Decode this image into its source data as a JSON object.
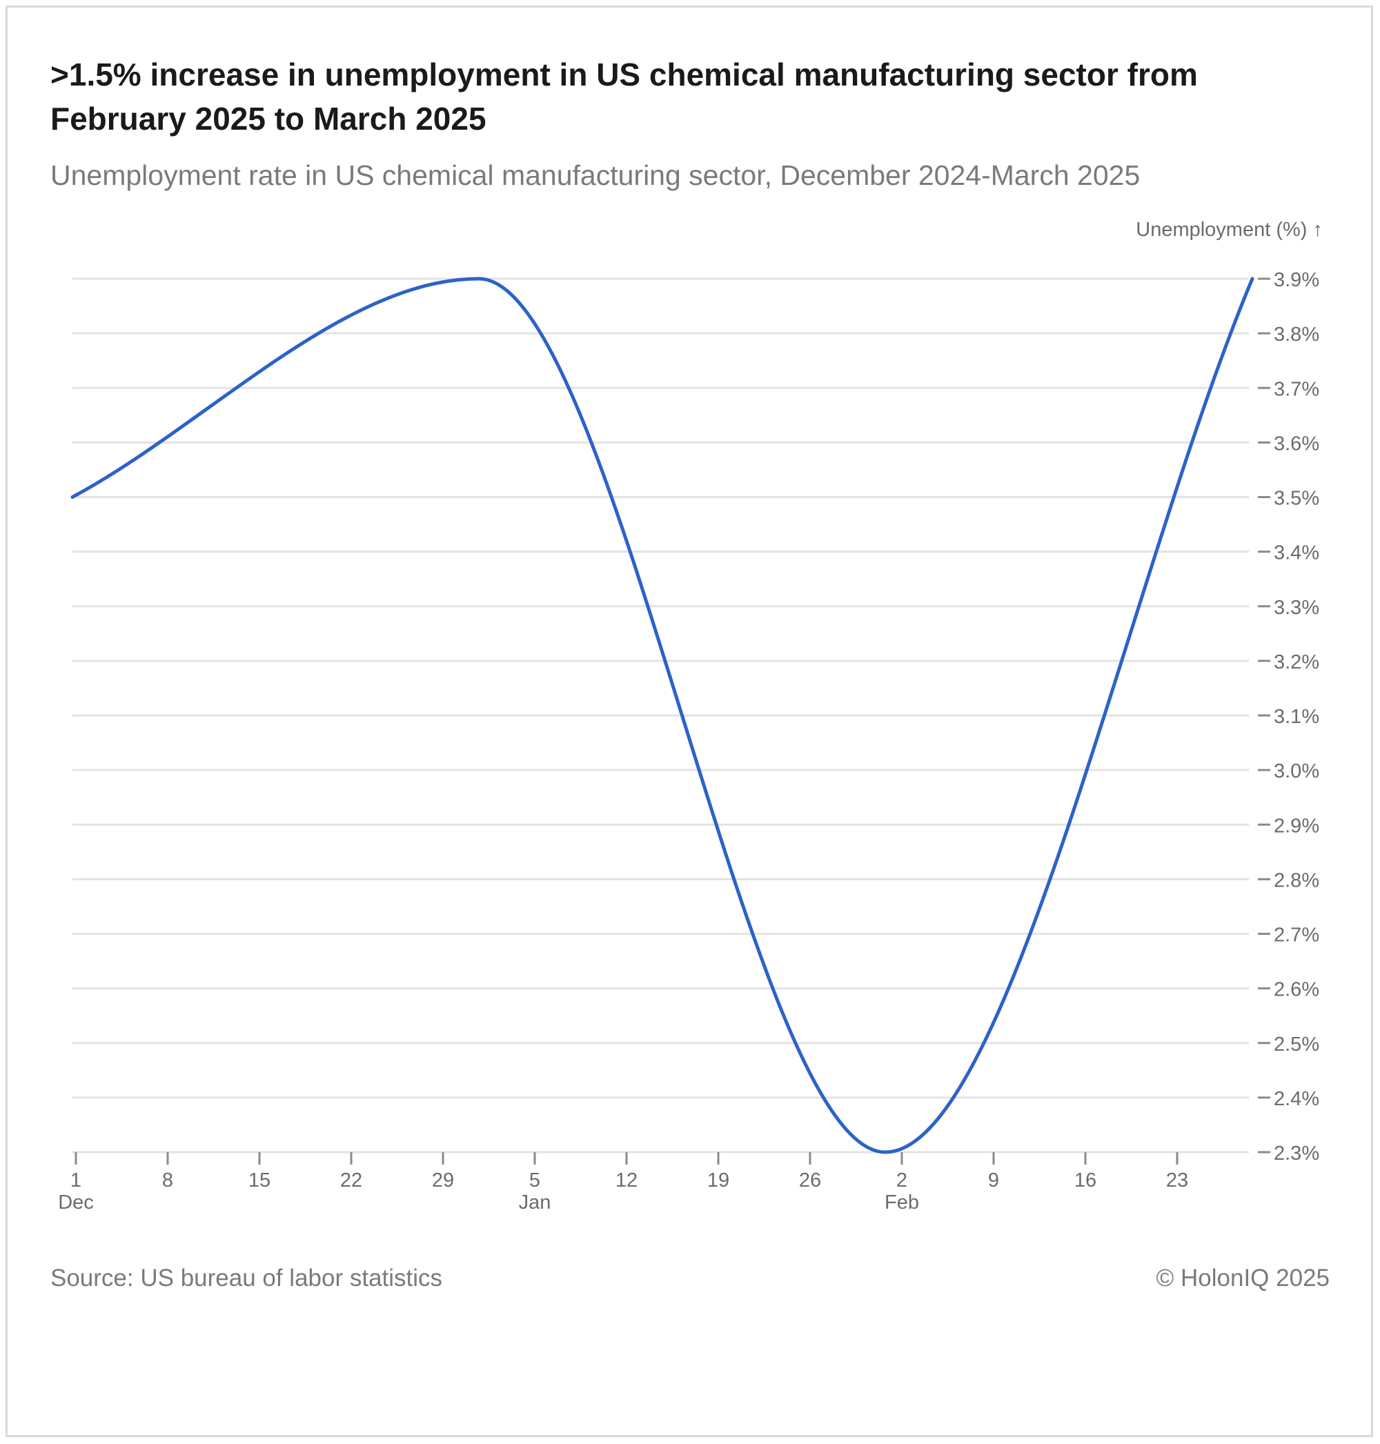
{
  "header": {
    "title": ">1.5% increase in unemployment in US chemical manufacturing sector from February 2025 to March 2025",
    "subtitle": "Unemployment rate in US chemical manufacturing sector, December 2024-March 2025"
  },
  "footer": {
    "source": "Source: US bureau of labor statistics",
    "copyright": "© HolonIQ 2025"
  },
  "colors": {
    "line": "#2c62c9",
    "grid": "#e3e3e3",
    "axis": "#8a8a8a",
    "text_muted": "#6b6b6b"
  },
  "chart_data": {
    "type": "line",
    "title": ">1.5% increase in unemployment in US chemical manufacturing sector from February 2025 to March 2025",
    "subtitle": "Unemployment rate in US chemical manufacturing sector, December 2024-March 2025",
    "xlabel": "",
    "ylabel": "Unemployment (%) ↑",
    "y_axis_side": "right",
    "ylim": [
      2.3,
      3.9
    ],
    "yticks": [
      2.3,
      2.4,
      2.5,
      2.6,
      2.7,
      2.8,
      2.9,
      3.0,
      3.1,
      3.2,
      3.3,
      3.4,
      3.5,
      3.6,
      3.7,
      3.8,
      3.9
    ],
    "ytick_labels": [
      "2.3%",
      "2.4%",
      "2.5%",
      "2.6%",
      "2.7%",
      "2.8%",
      "2.9%",
      "3.0%",
      "3.1%",
      "3.2%",
      "3.3%",
      "3.4%",
      "3.5%",
      "3.6%",
      "3.7%",
      "3.8%",
      "3.9%"
    ],
    "x_domain_days": [
      0,
      90
    ],
    "xticks": [
      {
        "day": 0,
        "label": "1",
        "month": "Dec"
      },
      {
        "day": 7,
        "label": "8",
        "month": ""
      },
      {
        "day": 14,
        "label": "15",
        "month": ""
      },
      {
        "day": 21,
        "label": "22",
        "month": ""
      },
      {
        "day": 28,
        "label": "29",
        "month": ""
      },
      {
        "day": 35,
        "label": "5",
        "month": "Jan"
      },
      {
        "day": 42,
        "label": "12",
        "month": ""
      },
      {
        "day": 49,
        "label": "19",
        "month": ""
      },
      {
        "day": 56,
        "label": "26",
        "month": ""
      },
      {
        "day": 63,
        "label": "2",
        "month": "Feb"
      },
      {
        "day": 70,
        "label": "9",
        "month": ""
      },
      {
        "day": 77,
        "label": "16",
        "month": ""
      },
      {
        "day": 84,
        "label": "23",
        "month": ""
      }
    ],
    "series": [
      {
        "name": "Unemployment rate",
        "x_dates": [
          "2024-12-01",
          "2025-01-01",
          "2025-02-01",
          "2025-03-01"
        ],
        "x_days": [
          0,
          31,
          62,
          90
        ],
        "values": [
          3.5,
          3.9,
          2.3,
          3.9
        ]
      }
    ],
    "grid": true,
    "legend": "none"
  }
}
